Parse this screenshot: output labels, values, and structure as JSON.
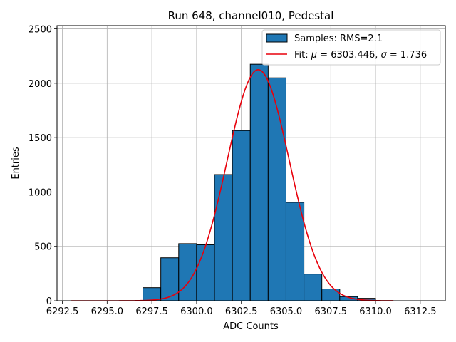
{
  "chart_data": {
    "type": "bar",
    "title": "Run 648, channel010, Pedestal",
    "xlabel": "ADC Counts",
    "ylabel": "Entries",
    "xlim": [
      6292.2,
      6313.9
    ],
    "ylim": [
      0,
      2530
    ],
    "grid": true,
    "legend_position": "top-right",
    "xticks": [
      6292.5,
      6295.0,
      6297.5,
      6300.0,
      6302.5,
      6305.0,
      6307.5,
      6310.0,
      6312.5
    ],
    "xtick_labels": [
      "6292.5",
      "6295.0",
      "6297.5",
      "6300.0",
      "6302.5",
      "6305.0",
      "6307.5",
      "6310.0",
      "6312.5"
    ],
    "yticks": [
      0,
      500,
      1000,
      1500,
      2000,
      2500
    ],
    "ytick_labels": [
      "0",
      "500",
      "1000",
      "1500",
      "2000",
      "2500"
    ],
    "bin_width": 1,
    "bin_edges_start": [
      6297,
      6298,
      6299,
      6300,
      6301,
      6302,
      6303,
      6304,
      6305,
      6306,
      6307,
      6308,
      6309
    ],
    "series": [
      {
        "name": "Samples: RMS=2.1",
        "kind": "histogram",
        "color": "#1f77b4",
        "values": [
          120,
          395,
          525,
          515,
          1160,
          1565,
          2175,
          2050,
          905,
          245,
          108,
          38,
          22
        ]
      },
      {
        "name": "Fit: μ = 6303.446, σ = 1.736",
        "kind": "line",
        "color": "#e8000b",
        "mu": 6303.446,
        "sigma": 1.736,
        "amplitude": 2125,
        "x_range": [
          6293,
          6311
        ]
      }
    ],
    "legend": [
      {
        "label": "Samples: RMS=2.1",
        "marker": "patch",
        "color": "#1f77b4"
      },
      {
        "label_prefix": "Fit: ",
        "label_mu_symbol": "μ",
        "label_mid": " = 6303.446, ",
        "label_sigma_symbol": "σ",
        "label_suffix": " = 1.736",
        "marker": "line",
        "color": "#e8000b"
      }
    ]
  }
}
